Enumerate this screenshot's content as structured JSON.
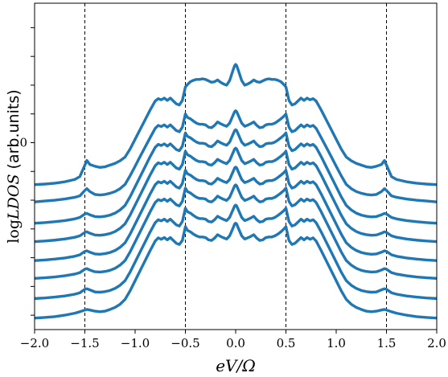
{
  "chart_data": {
    "type": "line",
    "title": "",
    "xlabel": "eV/Ω",
    "ylabel": {
      "prefix": "log",
      "symbol": "LDOS",
      "suffix": " (arb.units)"
    },
    "xlim": [
      -2.0,
      2.0
    ],
    "ylim": [
      -6.5,
      4.85
    ],
    "x_ticks": [
      -2.0,
      -1.5,
      -1.0,
      -0.5,
      0.0,
      0.5,
      1.0,
      1.5,
      2.0
    ],
    "x_tick_labels": [
      "−2.0",
      "−1.5",
      "−1.0",
      "−0.5",
      "0.0",
      "0.5",
      "1.0",
      "1.5",
      "2.0"
    ],
    "y_ticks": [
      -6,
      -5,
      -4,
      -3,
      -2,
      -1,
      0,
      1,
      2,
      3,
      4
    ],
    "y_tick_labels": [
      "",
      "",
      "",
      "",
      "",
      "",
      "0",
      "",
      "",
      "",
      ""
    ],
    "vlines": [
      -1.5,
      -0.5,
      0.5,
      1.5
    ],
    "vline_style": "dashed",
    "line_color": "#1f77b4",
    "grid": false,
    "legend": "none",
    "x": [
      -2.0,
      -1.9,
      -1.8,
      -1.7,
      -1.6,
      -1.55,
      -1.5,
      -1.48,
      -1.45,
      -1.4,
      -1.35,
      -1.3,
      -1.25,
      -1.2,
      -1.15,
      -1.1,
      -1.05,
      -1.0,
      -0.95,
      -0.9,
      -0.85,
      -0.8,
      -0.77,
      -0.74,
      -0.71,
      -0.68,
      -0.65,
      -0.62,
      -0.59,
      -0.56,
      -0.53,
      -0.5,
      -0.48,
      -0.45,
      -0.42,
      -0.39,
      -0.36,
      -0.33,
      -0.3,
      -0.27,
      -0.24,
      -0.21,
      -0.18,
      -0.15,
      -0.12,
      -0.09,
      -0.06,
      -0.03,
      -0.01,
      0.0,
      0.01,
      0.03,
      0.06,
      0.09,
      0.12,
      0.15,
      0.18,
      0.21,
      0.24,
      0.27,
      0.3,
      0.33,
      0.36,
      0.39,
      0.42,
      0.45,
      0.48,
      0.5,
      0.53,
      0.56,
      0.59,
      0.62,
      0.65,
      0.68,
      0.71,
      0.74,
      0.77,
      0.8,
      0.85,
      0.9,
      0.95,
      1.0,
      1.05,
      1.1,
      1.15,
      1.2,
      1.25,
      1.3,
      1.35,
      1.4,
      1.45,
      1.48,
      1.5,
      1.55,
      1.6,
      1.7,
      1.8,
      1.9,
      2.0
    ],
    "series": [
      {
        "values": [
          -6.1,
          -6.08,
          -6.05,
          -6.0,
          -5.93,
          -5.88,
          -5.82,
          -5.8,
          -5.82,
          -5.86,
          -5.88,
          -5.86,
          -5.8,
          -5.73,
          -5.62,
          -5.45,
          -5.15,
          -4.8,
          -4.45,
          -4.1,
          -3.75,
          -3.42,
          -3.31,
          -3.36,
          -3.3,
          -3.38,
          -3.3,
          -3.4,
          -3.5,
          -3.54,
          -3.4,
          -2.92,
          -3.05,
          -3.1,
          -3.18,
          -3.24,
          -3.28,
          -3.28,
          -3.3,
          -3.38,
          -3.4,
          -3.32,
          -3.2,
          -3.26,
          -3.31,
          -3.35,
          -3.24,
          -3.0,
          -2.83,
          -2.8,
          -2.83,
          -3.0,
          -3.24,
          -3.35,
          -3.31,
          -3.26,
          -3.2,
          -3.32,
          -3.4,
          -3.38,
          -3.3,
          -3.28,
          -3.28,
          -3.24,
          -3.18,
          -3.1,
          -3.0,
          -2.92,
          -3.4,
          -3.54,
          -3.5,
          -3.4,
          -3.3,
          -3.38,
          -3.3,
          -3.36,
          -3.31,
          -3.42,
          -3.75,
          -4.1,
          -4.45,
          -4.8,
          -5.15,
          -5.45,
          -5.62,
          -5.73,
          -5.8,
          -5.86,
          -5.88,
          -5.86,
          -5.82,
          -5.8,
          -5.82,
          -5.88,
          -5.93,
          -6.0,
          -6.05,
          -6.08,
          -6.1
        ]
      },
      {
        "values": [
          -5.42,
          -5.4,
          -5.37,
          -5.33,
          -5.27,
          -5.22,
          -5.1,
          -5.08,
          -5.12,
          -5.19,
          -5.2,
          -5.18,
          -5.14,
          -5.07,
          -4.96,
          -4.8,
          -4.5,
          -4.15,
          -3.8,
          -3.45,
          -3.1,
          -2.78,
          -2.68,
          -2.72,
          -2.66,
          -2.74,
          -2.66,
          -2.76,
          -2.86,
          -2.9,
          -2.74,
          -2.28,
          -2.4,
          -2.45,
          -2.53,
          -2.6,
          -2.64,
          -2.64,
          -2.66,
          -2.74,
          -2.76,
          -2.68,
          -2.56,
          -2.62,
          -2.67,
          -2.71,
          -2.6,
          -2.36,
          -2.2,
          -2.17,
          -2.2,
          -2.36,
          -2.6,
          -2.71,
          -2.67,
          -2.62,
          -2.56,
          -2.68,
          -2.76,
          -2.74,
          -2.66,
          -2.64,
          -2.64,
          -2.6,
          -2.53,
          -2.45,
          -2.36,
          -2.28,
          -2.74,
          -2.9,
          -2.86,
          -2.76,
          -2.66,
          -2.74,
          -2.66,
          -2.72,
          -2.68,
          -2.78,
          -3.1,
          -3.45,
          -3.8,
          -4.15,
          -4.5,
          -4.8,
          -4.96,
          -5.07,
          -5.14,
          -5.18,
          -5.2,
          -5.19,
          -5.12,
          -5.08,
          -5.1,
          -5.22,
          -5.27,
          -5.33,
          -5.37,
          -5.4,
          -5.42
        ]
      },
      {
        "values": [
          -4.72,
          -4.7,
          -4.67,
          -4.63,
          -4.57,
          -4.52,
          -4.4,
          -4.38,
          -4.43,
          -4.49,
          -4.5,
          -4.48,
          -4.44,
          -4.37,
          -4.26,
          -4.1,
          -3.8,
          -3.45,
          -3.1,
          -2.75,
          -2.4,
          -2.08,
          -1.98,
          -2.02,
          -1.96,
          -2.04,
          -1.96,
          -2.06,
          -2.16,
          -2.2,
          -2.04,
          -1.58,
          -1.7,
          -1.75,
          -1.83,
          -1.9,
          -1.94,
          -1.94,
          -1.96,
          -2.04,
          -2.06,
          -1.98,
          -1.86,
          -1.92,
          -1.97,
          -2.01,
          -1.9,
          -1.66,
          -1.5,
          -1.47,
          -1.5,
          -1.66,
          -1.9,
          -2.01,
          -1.97,
          -1.92,
          -1.86,
          -1.98,
          -2.06,
          -2.04,
          -1.96,
          -1.94,
          -1.94,
          -1.9,
          -1.83,
          -1.75,
          -1.66,
          -1.58,
          -2.04,
          -2.2,
          -2.16,
          -2.06,
          -1.96,
          -2.04,
          -1.96,
          -2.02,
          -1.98,
          -2.08,
          -2.4,
          -2.75,
          -3.1,
          -3.45,
          -3.8,
          -4.1,
          -4.26,
          -4.37,
          -4.44,
          -4.48,
          -4.5,
          -4.49,
          -4.43,
          -4.38,
          -4.4,
          -4.52,
          -4.57,
          -4.63,
          -4.67,
          -4.7,
          -4.72
        ]
      },
      {
        "values": [
          -4.1,
          -4.08,
          -4.05,
          -4.01,
          -3.95,
          -3.9,
          -3.78,
          -3.76,
          -3.81,
          -3.87,
          -3.88,
          -3.86,
          -3.82,
          -3.75,
          -3.64,
          -3.48,
          -3.18,
          -2.83,
          -2.48,
          -2.13,
          -1.78,
          -1.46,
          -1.36,
          -1.4,
          -1.34,
          -1.42,
          -1.34,
          -1.44,
          -1.54,
          -1.58,
          -1.42,
          -0.96,
          -1.08,
          -1.13,
          -1.21,
          -1.28,
          -1.32,
          -1.32,
          -1.34,
          -1.42,
          -1.44,
          -1.36,
          -1.24,
          -1.3,
          -1.35,
          -1.39,
          -1.28,
          -1.04,
          -0.88,
          -0.85,
          -0.88,
          -1.04,
          -1.28,
          -1.39,
          -1.35,
          -1.3,
          -1.24,
          -1.36,
          -1.44,
          -1.42,
          -1.34,
          -1.32,
          -1.32,
          -1.28,
          -1.21,
          -1.13,
          -1.04,
          -0.96,
          -1.42,
          -1.58,
          -1.54,
          -1.44,
          -1.34,
          -1.42,
          -1.34,
          -1.4,
          -1.36,
          -1.46,
          -1.78,
          -2.13,
          -2.48,
          -2.83,
          -3.18,
          -3.48,
          -3.64,
          -3.75,
          -3.82,
          -3.86,
          -3.88,
          -3.87,
          -3.81,
          -3.76,
          -3.78,
          -3.9,
          -3.95,
          -4.01,
          -4.05,
          -4.08,
          -4.1
        ]
      },
      {
        "values": [
          -3.44,
          -3.42,
          -3.39,
          -3.35,
          -3.29,
          -3.24,
          -3.12,
          -3.1,
          -3.15,
          -3.21,
          -3.22,
          -3.2,
          -3.16,
          -3.09,
          -2.98,
          -2.82,
          -2.52,
          -2.17,
          -1.82,
          -1.47,
          -1.12,
          -0.8,
          -0.7,
          -0.74,
          -0.68,
          -0.76,
          -0.68,
          -0.78,
          -0.88,
          -0.92,
          -0.76,
          -0.3,
          -0.42,
          -0.47,
          -0.55,
          -0.62,
          -0.66,
          -0.66,
          -0.68,
          -0.76,
          -0.78,
          -0.7,
          -0.58,
          -0.64,
          -0.69,
          -0.73,
          -0.62,
          -0.38,
          -0.22,
          -0.19,
          -0.22,
          -0.38,
          -0.62,
          -0.73,
          -0.69,
          -0.64,
          -0.58,
          -0.7,
          -0.78,
          -0.76,
          -0.68,
          -0.66,
          -0.66,
          -0.62,
          -0.55,
          -0.47,
          -0.38,
          -0.3,
          -0.76,
          -0.92,
          -0.88,
          -0.78,
          -0.68,
          -0.76,
          -0.68,
          -0.74,
          -0.7,
          -0.8,
          -1.12,
          -1.47,
          -1.82,
          -2.17,
          -2.52,
          -2.82,
          -2.98,
          -3.09,
          -3.16,
          -3.2,
          -3.22,
          -3.21,
          -3.15,
          -3.1,
          -3.12,
          -3.24,
          -3.29,
          -3.35,
          -3.39,
          -3.42,
          -3.44
        ]
      },
      {
        "values": [
          -2.8,
          -2.78,
          -2.75,
          -2.71,
          -2.65,
          -2.6,
          -2.48,
          -2.46,
          -2.51,
          -2.57,
          -2.58,
          -2.56,
          -2.52,
          -2.45,
          -2.34,
          -2.18,
          -1.88,
          -1.53,
          -1.18,
          -0.83,
          -0.48,
          -0.16,
          -0.06,
          -0.1,
          -0.04,
          -0.12,
          -0.04,
          -0.14,
          -0.24,
          -0.28,
          -0.12,
          0.34,
          0.22,
          0.17,
          0.09,
          0.02,
          -0.02,
          -0.02,
          -0.04,
          -0.12,
          -0.14,
          -0.06,
          0.06,
          0.0,
          -0.05,
          -0.09,
          0.02,
          0.26,
          0.42,
          0.45,
          0.42,
          0.26,
          0.02,
          -0.09,
          -0.05,
          0.0,
          0.06,
          -0.06,
          -0.14,
          -0.12,
          -0.04,
          -0.02,
          -0.02,
          0.02,
          0.09,
          0.17,
          0.26,
          0.34,
          -0.12,
          -0.28,
          -0.24,
          -0.14,
          -0.04,
          -0.12,
          -0.04,
          -0.1,
          -0.06,
          -0.16,
          -0.48,
          -0.83,
          -1.18,
          -1.53,
          -1.88,
          -2.18,
          -2.34,
          -2.45,
          -2.52,
          -2.56,
          -2.58,
          -2.57,
          -2.51,
          -2.46,
          -2.48,
          -2.6,
          -2.65,
          -2.71,
          -2.75,
          -2.78,
          -2.8
        ]
      },
      {
        "values": [
          -2.06,
          -2.03,
          -2.0,
          -1.96,
          -1.9,
          -1.85,
          -1.66,
          -1.6,
          -1.7,
          -1.8,
          -1.82,
          -1.8,
          -1.76,
          -1.7,
          -1.6,
          -1.45,
          -1.15,
          -0.82,
          -0.48,
          -0.15,
          0.18,
          0.5,
          0.6,
          0.56,
          0.62,
          0.54,
          0.62,
          0.52,
          0.42,
          0.38,
          0.54,
          1.0,
          0.88,
          0.83,
          0.75,
          0.68,
          0.64,
          0.64,
          0.62,
          0.54,
          0.52,
          0.6,
          0.72,
          0.66,
          0.61,
          0.57,
          0.68,
          0.92,
          1.08,
          1.11,
          1.08,
          0.92,
          0.68,
          0.57,
          0.61,
          0.66,
          0.72,
          0.6,
          0.52,
          0.54,
          0.62,
          0.64,
          0.64,
          0.68,
          0.75,
          0.83,
          0.92,
          1.0,
          0.54,
          0.38,
          0.42,
          0.52,
          0.62,
          0.54,
          0.62,
          0.56,
          0.6,
          0.5,
          0.18,
          -0.15,
          -0.48,
          -0.82,
          -1.15,
          -1.45,
          -1.6,
          -1.7,
          -1.76,
          -1.8,
          -1.82,
          -1.8,
          -1.7,
          -1.6,
          -1.66,
          -1.85,
          -1.9,
          -1.96,
          -2.0,
          -2.03,
          -2.06
        ]
      },
      {
        "values": [
          -1.46,
          -1.44,
          -1.41,
          -1.36,
          -1.28,
          -1.18,
          -0.78,
          -0.62,
          -0.76,
          -0.82,
          -0.86,
          -0.84,
          -0.78,
          -0.72,
          -0.63,
          -0.5,
          -0.22,
          0.12,
          0.46,
          0.8,
          1.14,
          1.45,
          1.53,
          1.49,
          1.55,
          1.47,
          1.55,
          1.45,
          1.35,
          1.31,
          1.47,
          1.94,
          2.02,
          2.12,
          2.17,
          2.2,
          2.2,
          2.22,
          2.2,
          2.15,
          2.1,
          2.12,
          2.18,
          2.1,
          2.04,
          2.0,
          2.16,
          2.48,
          2.68,
          2.72,
          2.68,
          2.48,
          2.16,
          2.0,
          2.04,
          2.1,
          2.18,
          2.12,
          2.1,
          2.15,
          2.2,
          2.22,
          2.2,
          2.2,
          2.17,
          2.12,
          2.02,
          1.94,
          1.47,
          1.31,
          1.35,
          1.45,
          1.55,
          1.47,
          1.55,
          1.49,
          1.53,
          1.45,
          1.14,
          0.8,
          0.46,
          0.12,
          -0.22,
          -0.5,
          -0.63,
          -0.72,
          -0.78,
          -0.84,
          -0.86,
          -0.82,
          -0.76,
          -0.62,
          -0.78,
          -1.18,
          -1.28,
          -1.36,
          -1.41,
          -1.44,
          -1.46
        ]
      }
    ]
  }
}
